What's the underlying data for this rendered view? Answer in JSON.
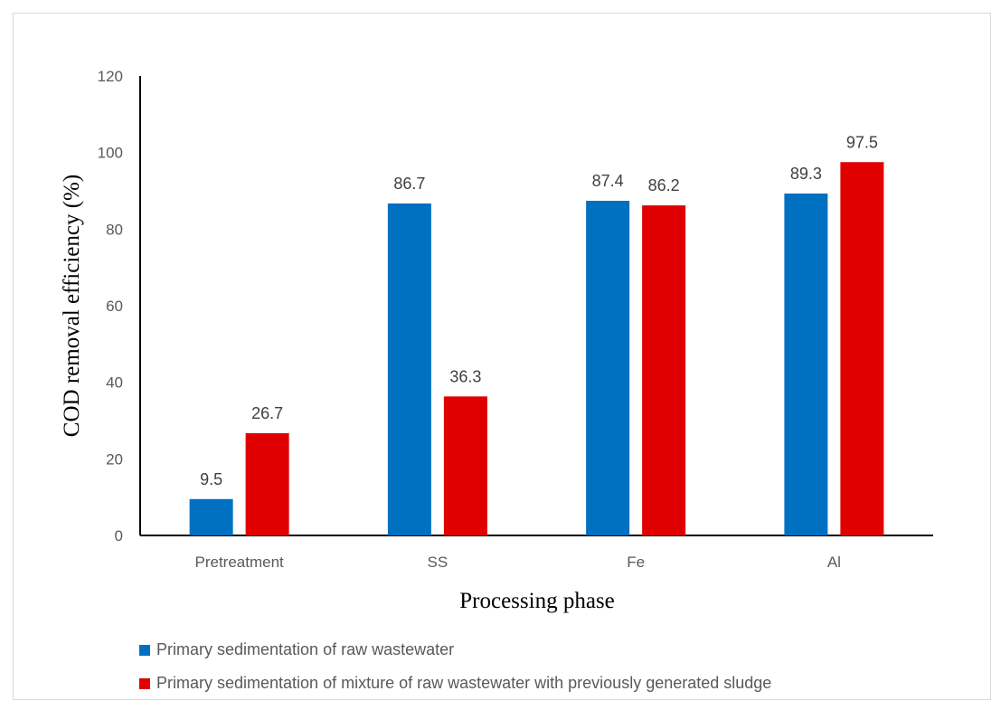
{
  "chart_data": {
    "type": "bar",
    "categories": [
      "Pretreatment",
      "SS",
      "Fe",
      "Al"
    ],
    "series": [
      {
        "name": "Primary sedimentation of raw wastewater",
        "values": [
          9.5,
          86.7,
          87.4,
          89.3
        ],
        "color": "#0070C0"
      },
      {
        "name": "Primary sedimentation of mixture of raw wastewater with previously generated sludge",
        "values": [
          26.7,
          36.3,
          86.2,
          97.5
        ],
        "color": "#E00000"
      }
    ],
    "xlabel": "Processing phase",
    "ylabel": "COD removal efficiency (%)",
    "ylim": [
      0,
      120
    ],
    "yticks": [
      0,
      20,
      40,
      60,
      80,
      100,
      120
    ],
    "grid": false,
    "legend_position": "bottom-left"
  }
}
